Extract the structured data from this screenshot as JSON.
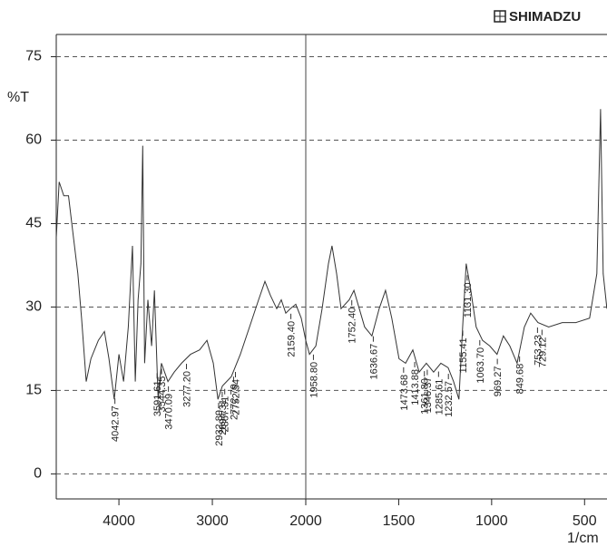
{
  "chart_data": {
    "type": "line",
    "logo": "SHIMADZU",
    "ylabel": "%T",
    "xlabel": "1/cm",
    "x_scale_change": 2000,
    "xlim": [
      4700,
      350
    ],
    "ylim": [
      -4.5,
      79
    ],
    "xticks": [
      4000,
      3000,
      2000,
      1500,
      1000,
      500
    ],
    "yticks": [
      0,
      15,
      30,
      45,
      60,
      75
    ],
    "grid": true,
    "color": "#333333",
    "x": [
      4670,
      4640,
      4590,
      4540,
      4490,
      4440,
      4400,
      4350,
      4300,
      4220,
      4155,
      4107,
      4050,
      4000,
      3950,
      3900,
      3855,
      3825,
      3795,
      3765,
      3745,
      3725,
      3690,
      3650,
      3620,
      3580,
      3545,
      3475,
      3408,
      3330,
      3233,
      3136,
      3058,
      2990,
      2940,
      2893,
      2796,
      2700,
      2602,
      2505,
      2437,
      2379,
      2311,
      2262,
      2214,
      2165,
      2107,
      2049,
      2000,
      1980,
      1946,
      1912,
      1878,
      1859,
      1834,
      1810,
      1766,
      1741,
      1712,
      1683,
      1644,
      1605,
      1571,
      1537,
      1498,
      1463,
      1424,
      1390,
      1351,
      1312,
      1273,
      1234,
      1205,
      1176,
      1156,
      1137,
      1112,
      1083,
      1049,
      1010,
      971,
      937,
      902,
      863,
      824,
      790,
      751,
      693,
      620,
      546,
      473,
      434,
      414,
      400,
      380
    ],
    "values": [
      42.7,
      52.5,
      50,
      50,
      43,
      36,
      28,
      16.6,
      20.7,
      24,
      25.6,
      20.7,
      13.4,
      21.5,
      16.6,
      26.4,
      41,
      16.6,
      31.3,
      37.8,
      59,
      19.9,
      31.3,
      23,
      33,
      13.4,
      19.9,
      16.6,
      18.3,
      19.9,
      21.5,
      22.3,
      24,
      19.9,
      13.4,
      15.8,
      17.5,
      21.5,
      26.4,
      31.3,
      34.6,
      32.1,
      29.7,
      31.3,
      28.9,
      29.7,
      30.5,
      28,
      24,
      21.5,
      23,
      29.7,
      37.8,
      41,
      36,
      29.7,
      31.3,
      33,
      29.7,
      26.4,
      24.8,
      29.7,
      33,
      28,
      20.7,
      19.9,
      22.3,
      18.3,
      19.9,
      18.3,
      19.9,
      19.1,
      16.6,
      13.4,
      26.4,
      37.8,
      33,
      26.4,
      24,
      23,
      21.5,
      24.8,
      23,
      19.9,
      26.4,
      28.9,
      27.2,
      26.4,
      27.2,
      27.2,
      28,
      36,
      65.6,
      36,
      29.7
    ],
    "peaks": [
      {
        "value": 4042.97,
        "label": "4042.97"
      },
      {
        "value": 3591.61,
        "label": "3591.61"
      },
      {
        "value": 3544.35,
        "label": "3544.35"
      },
      {
        "value": 3470.09,
        "label": "3470.09"
      },
      {
        "value": 3277.2,
        "label": "3277.20"
      },
      {
        "value": 2932.89,
        "label": "2932.89"
      },
      {
        "value": 2894.31,
        "label": "2894.31"
      },
      {
        "value": 2867.31,
        "label": "2867.31"
      },
      {
        "value": 2772.79,
        "label": "2772.79"
      },
      {
        "value": 2752.54,
        "label": "2752.54"
      },
      {
        "value": 2159.4,
        "label": "2159.40"
      },
      {
        "value": 1958.8,
        "label": "1958.80"
      },
      {
        "value": 1752.4,
        "label": "1752.40"
      },
      {
        "value": 1636.67,
        "label": "1636.67"
      },
      {
        "value": 1473.68,
        "label": "1473.68"
      },
      {
        "value": 1413.88,
        "label": "1413.88"
      },
      {
        "value": 1361.8,
        "label": "1361.80"
      },
      {
        "value": 1346.37,
        "label": "1346.37"
      },
      {
        "value": 1285.61,
        "label": "1285.61"
      },
      {
        "value": 1232.57,
        "label": "1232.57"
      },
      {
        "value": 1155.41,
        "label": "1155.41"
      },
      {
        "value": 1131.3,
        "label": "1131.30"
      },
      {
        "value": 1063.7,
        "label": "1063.70"
      },
      {
        "value": 969.27,
        "label": "969.27"
      },
      {
        "value": 849.68,
        "label": "849.68"
      },
      {
        "value": 753.23,
        "label": "753.23"
      },
      {
        "value": 729.12,
        "label": "729.12"
      }
    ]
  }
}
